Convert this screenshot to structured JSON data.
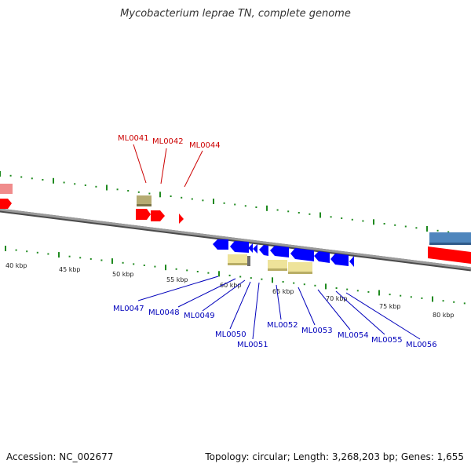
{
  "title": "Mycobacterium leprae TN, complete genome",
  "accession_label": "Accession: NC_002677",
  "topology_info": "Topology: circular; Length: 3,268,203 bp; Genes: 1,655",
  "colors": {
    "backbone": "#8a8a8a",
    "tick": "#1f8a1f",
    "forward_gene": "#ff0000",
    "reverse_gene": "#0000ff",
    "label_top": "#cc0000",
    "label_bottom": "#0000bb",
    "feature_khaki": "#b5ab72",
    "feature_yellow": "#eee39a",
    "feature_pink": "#f08c8c",
    "feature_steelblue": "#4f86bd"
  },
  "scale_labels": [
    {
      "text": "40 kbp",
      "kbp": 40
    },
    {
      "text": "45 kbp",
      "kbp": 45
    },
    {
      "text": "50 kbp",
      "kbp": 50
    },
    {
      "text": "55 kbp",
      "kbp": 55
    },
    {
      "text": "60 kbp",
      "kbp": 60
    },
    {
      "text": "65 kbp",
      "kbp": 65
    },
    {
      "text": "70 kbp",
      "kbp": 70
    },
    {
      "text": "75 kbp",
      "kbp": 75
    },
    {
      "text": "80 kbp",
      "kbp": 80
    }
  ],
  "top_gene_labels": [
    "ML0041",
    "ML0042",
    "ML0044"
  ],
  "bottom_gene_labels": [
    "ML0047",
    "ML0048",
    "ML0049",
    "ML0050",
    "ML0051",
    "ML0052",
    "ML0053",
    "ML0054",
    "ML0055",
    "ML0056"
  ]
}
